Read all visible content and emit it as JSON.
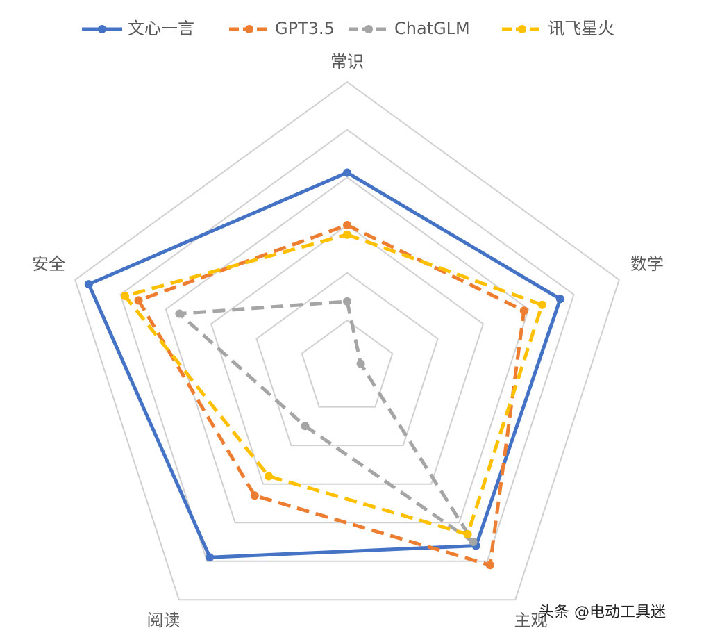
{
  "chart_data": {
    "type": "radar",
    "categories": [
      "常识",
      "数学",
      "主观",
      "阅读",
      "安全"
    ],
    "rmax": 6,
    "rings": 6,
    "grid": true,
    "legend_position": "top",
    "series": [
      {
        "name": "文心一言",
        "color": "#4472C4",
        "dash": "solid",
        "values": [
          4.1,
          4.7,
          4.6,
          4.9,
          5.7
        ]
      },
      {
        "name": "GPT3.5",
        "color": "#ED7D31",
        "dash": "dashed",
        "values": [
          3.0,
          3.9,
          5.1,
          3.3,
          4.6
        ]
      },
      {
        "name": "ChatGLM",
        "color": "#A5A5A5",
        "dash": "dashed",
        "values": [
          1.4,
          0.3,
          4.5,
          1.5,
          3.7
        ]
      },
      {
        "name": "讯飞星火",
        "color": "#FFC000",
        "dash": "dashed",
        "values": [
          2.8,
          4.3,
          4.3,
          2.8,
          4.9
        ]
      }
    ]
  },
  "watermark": "头条 @电动工具迷"
}
